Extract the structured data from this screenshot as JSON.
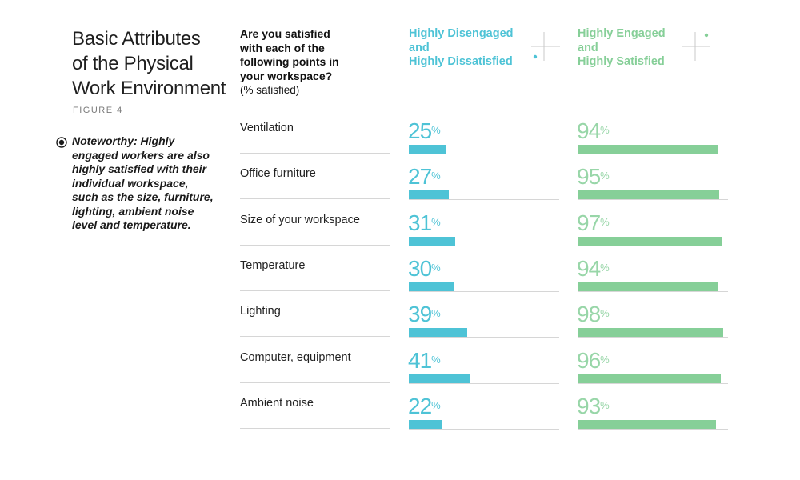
{
  "title_lines": [
    "Basic Attributes",
    "of the Physical",
    "Work Environment"
  ],
  "figure_label": "FIGURE 4",
  "note": {
    "icon": "target-icon",
    "text": "Noteworthy: Highly engaged workers are also highly satisfied with their individual workspace, such as the size, furniture, lighting, ambient noise level and temperature."
  },
  "question": {
    "lines": [
      "Are you satisfied",
      "with each of the",
      "following points in",
      "your workspace?"
    ],
    "sub": "(% satisfied)"
  },
  "colors": {
    "disengaged": "#4ec3d6",
    "engaged": "#86cf98"
  },
  "chart_data": {
    "type": "bar",
    "categories": [
      "Ventilation",
      "Office furniture",
      "Size of your workspace",
      "Temperature",
      "Lighting",
      "Computer, equipment",
      "Ambient noise"
    ],
    "series": [
      {
        "name": "Highly Disengaged and Highly Dissatisfied",
        "name_lines": [
          "Highly Disengaged",
          "and",
          "Highly Dissatisfied"
        ],
        "values": [
          25,
          27,
          31,
          30,
          39,
          41,
          22
        ]
      },
      {
        "name": "Highly Engaged and Highly Satisfied",
        "name_lines": [
          "Highly Engaged",
          "and",
          "Highly Satisfied"
        ],
        "values": [
          94,
          95,
          97,
          94,
          98,
          96,
          93
        ]
      }
    ],
    "unit": "%",
    "ylim": [
      0,
      100
    ]
  }
}
